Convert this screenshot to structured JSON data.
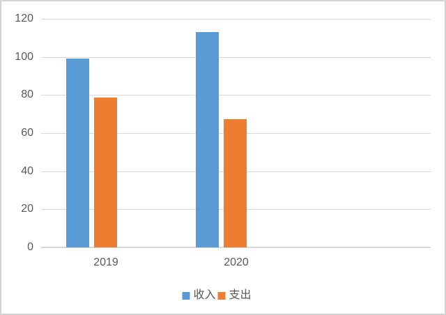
{
  "chart_data": {
    "type": "bar",
    "categories": [
      "2019",
      "2020"
    ],
    "series": [
      {
        "name": "收入",
        "semantic": "income",
        "color": "#5B9BD5",
        "values": [
          99,
          113
        ]
      },
      {
        "name": "支出",
        "semantic": "expense",
        "color": "#ED7D31",
        "values": [
          78.5,
          67.4
        ]
      }
    ],
    "title": "",
    "xlabel": "",
    "ylabel": "",
    "ylim": [
      0,
      120
    ],
    "yticks": [
      0,
      20,
      40,
      60,
      80,
      100,
      120
    ],
    "grid": true,
    "legend_position": "bottom",
    "colors": {
      "text": "#595959",
      "gridline": "#D9D9D9",
      "frame_border": "#D3D3D3",
      "background": "#FFFFFF"
    }
  }
}
